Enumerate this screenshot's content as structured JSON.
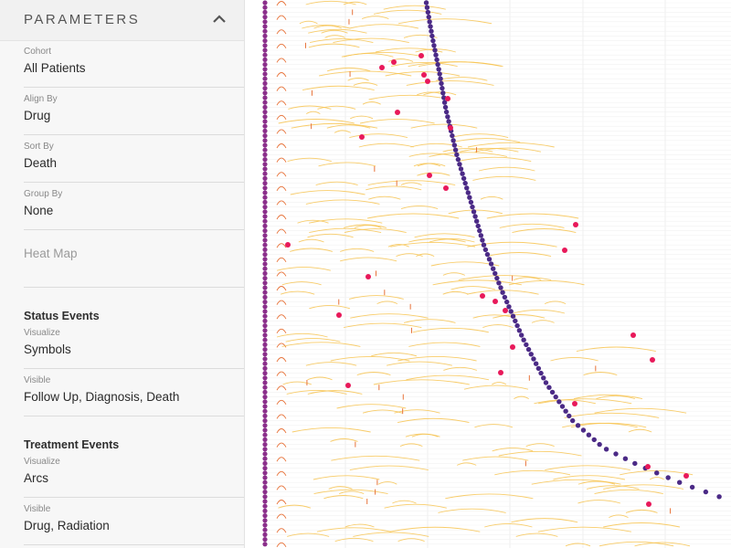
{
  "sidebar": {
    "title": "PARAMETERS",
    "collapse_icon": "chevron-up-icon",
    "fields": [
      {
        "label": "Cohort",
        "value": "All Patients"
      },
      {
        "label": "Align By",
        "value": "Drug"
      },
      {
        "label": "Sort By",
        "value": "Death"
      },
      {
        "label": "Group By",
        "value": "None"
      }
    ],
    "heat_map": {
      "label": "Heat Map"
    },
    "status_events": {
      "title": "Status Events",
      "visualize": {
        "label": "Visualize",
        "value": "Symbols"
      },
      "visible": {
        "label": "Visible",
        "value": "Follow Up, Diagnosis, Death"
      }
    },
    "treatment_events": {
      "title": "Treatment Events",
      "visualize": {
        "label": "Visualize",
        "value": "Arcs"
      },
      "visible": {
        "label": "Visible",
        "value": "Drug, Radiation"
      }
    }
  },
  "colors": {
    "alignment_marker": "#8b2f8b",
    "death_marker": "#4b2a86",
    "status_marker": "#e8195a",
    "arc_light": "#f7c34f",
    "arc_dark": "#e8733a"
  }
}
